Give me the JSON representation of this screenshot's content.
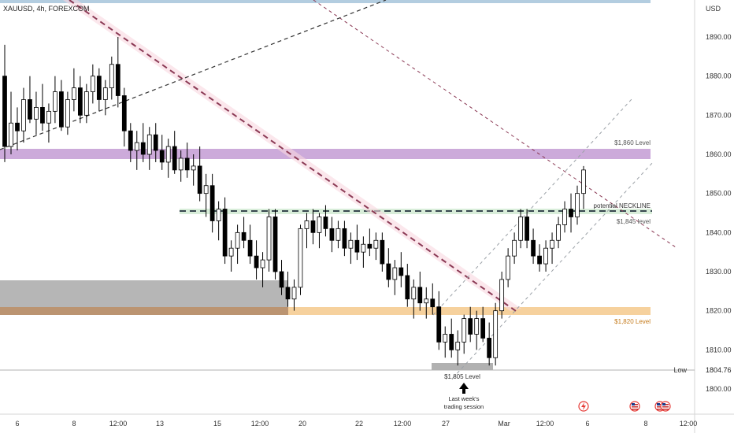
{
  "chart_data": {
    "type": "candlestick",
    "symbol_label": "XAUUSD, 4h, FOREXCOM",
    "currency_label": "USD",
    "price_axis": {
      "ticks": [
        1890,
        1880,
        1870,
        1860,
        1850,
        1840,
        1830,
        1820,
        1810,
        1800
      ],
      "tick_labels": [
        "1890.00",
        "1880.00",
        "1870.00",
        "1860.00",
        "1850.00",
        "1840.00",
        "1830.00",
        "1820.00",
        "1810.00",
        "1800.00"
      ],
      "ylim": [
        1794,
        1893
      ]
    },
    "time_axis": {
      "labels": [
        "6",
        "8",
        "12:00",
        "13",
        "15",
        "12:00",
        "20",
        "22",
        "12:00",
        "27",
        "Mar",
        "12:00",
        "6",
        "8",
        "12:00"
      ]
    },
    "low_marker": {
      "label": "Low",
      "value": "1804.76"
    },
    "levels": [
      {
        "label": "$1,860 Level",
        "low": 1859,
        "high": 1861.5,
        "color": "#c39bd3"
      },
      {
        "label": "$1,845 level",
        "value": 1845,
        "color": "#37474f"
      },
      {
        "label": "$1,820 Level",
        "low": 1819,
        "high": 1821,
        "color": "#f5c98c"
      },
      {
        "label": "$1,805 Level",
        "low": 1804.5,
        "high": 1806.5,
        "color": "#9e9e9e"
      }
    ],
    "annotations": {
      "neckline": "potential NECKLINE",
      "session_line1": "Last week's",
      "session_line2": "trading session"
    },
    "candles": [
      [
        1880,
        1888,
        1858,
        1862
      ],
      [
        1862,
        1876,
        1860,
        1868
      ],
      [
        1868,
        1872,
        1861,
        1866
      ],
      [
        1866,
        1877,
        1863,
        1874
      ],
      [
        1874,
        1880,
        1868,
        1869
      ],
      [
        1869,
        1876,
        1865,
        1872
      ],
      [
        1872,
        1878,
        1866,
        1868
      ],
      [
        1868,
        1873,
        1863,
        1871
      ],
      [
        1871,
        1880,
        1868,
        1876
      ],
      [
        1876,
        1879,
        1866,
        1867
      ],
      [
        1867,
        1876,
        1865,
        1874
      ],
      [
        1874,
        1882,
        1871,
        1877
      ],
      [
        1877,
        1880,
        1868,
        1870
      ],
      [
        1870,
        1878,
        1868,
        1876
      ],
      [
        1876,
        1883,
        1873,
        1880
      ],
      [
        1880,
        1882,
        1871,
        1874
      ],
      [
        1874,
        1879,
        1870,
        1877
      ],
      [
        1877,
        1885,
        1874,
        1883
      ],
      [
        1883,
        1890,
        1872,
        1875
      ],
      [
        1875,
        1877,
        1862,
        1866
      ],
      [
        1866,
        1868,
        1858,
        1861
      ],
      [
        1861,
        1866,
        1856,
        1863
      ],
      [
        1863,
        1868,
        1858,
        1860
      ],
      [
        1860,
        1867,
        1856,
        1865
      ],
      [
        1865,
        1868,
        1858,
        1861
      ],
      [
        1861,
        1865,
        1856,
        1858
      ],
      [
        1858,
        1864,
        1854,
        1862
      ],
      [
        1862,
        1866,
        1855,
        1856
      ],
      [
        1856,
        1861,
        1853,
        1859
      ],
      [
        1859,
        1863,
        1854,
        1856
      ],
      [
        1856,
        1860,
        1852,
        1857
      ],
      [
        1857,
        1862,
        1848,
        1850
      ],
      [
        1850,
        1855,
        1844,
        1852
      ],
      [
        1852,
        1855,
        1840,
        1843
      ],
      [
        1843,
        1848,
        1838,
        1846
      ],
      [
        1846,
        1849,
        1832,
        1834
      ],
      [
        1834,
        1838,
        1830,
        1836
      ],
      [
        1836,
        1842,
        1832,
        1840
      ],
      [
        1840,
        1844,
        1836,
        1838
      ],
      [
        1838,
        1842,
        1832,
        1834
      ],
      [
        1834,
        1838,
        1828,
        1831
      ],
      [
        1831,
        1835,
        1826,
        1833
      ],
      [
        1833,
        1846,
        1830,
        1844
      ],
      [
        1844,
        1846,
        1828,
        1830
      ],
      [
        1830,
        1833,
        1824,
        1826
      ],
      [
        1826,
        1830,
        1821,
        1823
      ],
      [
        1823,
        1828,
        1820,
        1826
      ],
      [
        1826,
        1842,
        1824,
        1841
      ],
      [
        1841,
        1845,
        1836,
        1843
      ],
      [
        1843,
        1846,
        1837,
        1840
      ],
      [
        1840,
        1845,
        1836,
        1844
      ],
      [
        1844,
        1847,
        1839,
        1841
      ],
      [
        1841,
        1844,
        1835,
        1838
      ],
      [
        1838,
        1843,
        1836,
        1841
      ],
      [
        1841,
        1843,
        1834,
        1836
      ],
      [
        1836,
        1840,
        1832,
        1838
      ],
      [
        1838,
        1842,
        1833,
        1835
      ],
      [
        1835,
        1839,
        1831,
        1837
      ],
      [
        1837,
        1841,
        1834,
        1836
      ],
      [
        1836,
        1840,
        1833,
        1838
      ],
      [
        1838,
        1840,
        1830,
        1832
      ],
      [
        1832,
        1836,
        1826,
        1828
      ],
      [
        1828,
        1833,
        1824,
        1831
      ],
      [
        1831,
        1835,
        1826,
        1829
      ],
      [
        1829,
        1832,
        1821,
        1823
      ],
      [
        1823,
        1828,
        1818,
        1826
      ],
      [
        1826,
        1830,
        1820,
        1822
      ],
      [
        1822,
        1826,
        1818,
        1823
      ],
      [
        1823,
        1827,
        1819,
        1821
      ],
      [
        1821,
        1825,
        1810,
        1812
      ],
      [
        1812,
        1816,
        1808,
        1814
      ],
      [
        1814,
        1818,
        1808,
        1810
      ],
      [
        1810,
        1815,
        1806,
        1812
      ],
      [
        1812,
        1819,
        1809,
        1818
      ],
      [
        1818,
        1821,
        1812,
        1814
      ],
      [
        1814,
        1820,
        1810,
        1818
      ],
      [
        1818,
        1821,
        1812,
        1813
      ],
      [
        1813,
        1817,
        1806,
        1808
      ],
      [
        1808,
        1822,
        1806,
        1820
      ],
      [
        1820,
        1830,
        1818,
        1828
      ],
      [
        1828,
        1836,
        1826,
        1834
      ],
      [
        1834,
        1840,
        1832,
        1838
      ],
      [
        1838,
        1846,
        1836,
        1844
      ],
      [
        1844,
        1846,
        1836,
        1838
      ],
      [
        1838,
        1841,
        1832,
        1834
      ],
      [
        1834,
        1837,
        1830,
        1832
      ],
      [
        1832,
        1838,
        1830,
        1836
      ],
      [
        1836,
        1840,
        1832,
        1838
      ],
      [
        1838,
        1844,
        1836,
        1842
      ],
      [
        1842,
        1848,
        1840,
        1846
      ],
      [
        1846,
        1850,
        1840,
        1844
      ],
      [
        1844,
        1852,
        1842,
        1850
      ],
      [
        1850,
        1857,
        1846,
        1856
      ]
    ]
  }
}
